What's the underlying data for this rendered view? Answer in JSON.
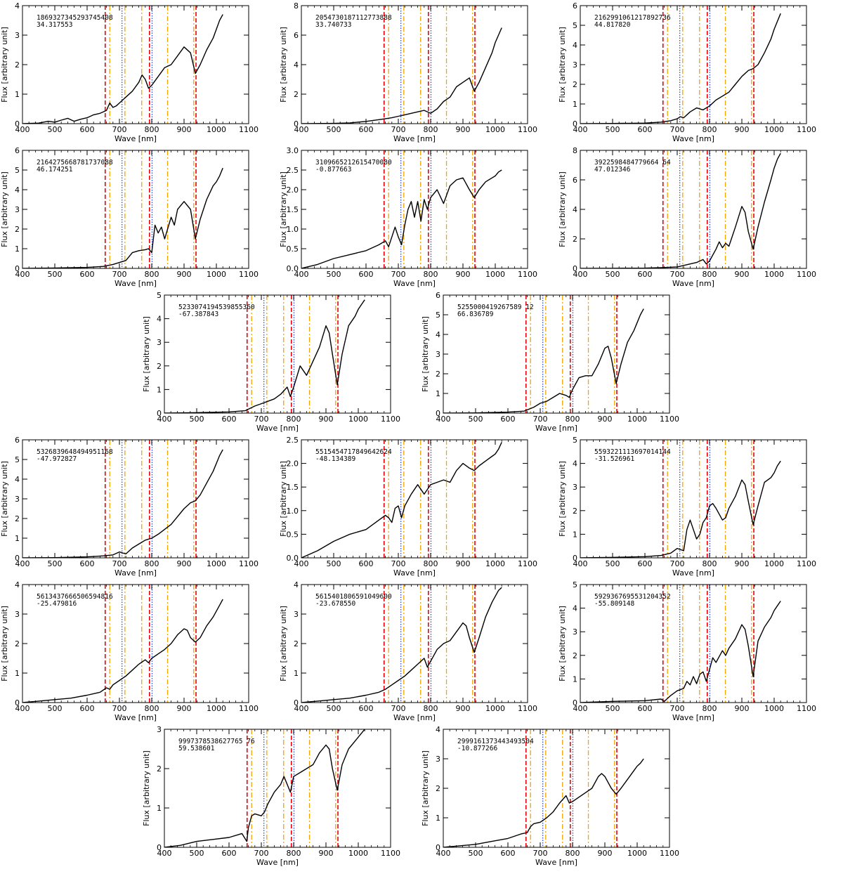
{
  "chart_data": [
    {
      "type": "line",
      "id": "186932734529374540 8",
      "annotation": [
        "1869327345293745408",
        "34.317553"
      ],
      "xlabel": "Wave [nm]",
      "ylabel": "Flux [arbitrary unit]",
      "xlim": [
        400,
        1100
      ],
      "ylim": [
        0,
        4
      ],
      "yticks": [
        0,
        1,
        2,
        3,
        4
      ],
      "x": [
        400,
        450,
        480,
        500,
        520,
        540,
        560,
        580,
        600,
        620,
        640,
        650,
        660,
        670,
        680,
        690,
        700,
        710,
        720,
        740,
        760,
        770,
        780,
        790,
        800,
        820,
        840,
        860,
        880,
        900,
        920,
        935,
        950,
        970,
        990,
        1000,
        1010,
        1020
      ],
      "y": [
        0,
        0.02,
        0.08,
        0.05,
        0.12,
        0.18,
        0.08,
        0.15,
        0.2,
        0.3,
        0.35,
        0.4,
        0.45,
        0.7,
        0.55,
        0.6,
        0.7,
        0.8,
        0.9,
        1.1,
        1.4,
        1.65,
        1.5,
        1.2,
        1.3,
        1.6,
        1.9,
        2.0,
        2.3,
        2.6,
        2.4,
        1.7,
        2.0,
        2.5,
        2.9,
        3.2,
        3.5,
        3.7
      ]
    },
    {
      "type": "line",
      "annotation": [
        "2054730187112773888",
        "33.740733"
      ],
      "xlabel": "Wave [nm]",
      "ylabel": "Flux [arbitrary unit]",
      "xlim": [
        400,
        1100
      ],
      "ylim": [
        0,
        8
      ],
      "yticks": [
        0,
        2,
        4,
        6,
        8
      ],
      "x": [
        400,
        500,
        550,
        600,
        650,
        680,
        700,
        720,
        740,
        760,
        780,
        800,
        820,
        840,
        860,
        880,
        900,
        920,
        935,
        950,
        970,
        990,
        1000,
        1010,
        1020
      ],
      "y": [
        0,
        0.02,
        0.05,
        0.15,
        0.3,
        0.4,
        0.5,
        0.6,
        0.7,
        0.8,
        0.9,
        0.7,
        1.0,
        1.5,
        1.8,
        2.5,
        2.8,
        3.1,
        2.2,
        2.8,
        3.8,
        4.8,
        5.5,
        6.0,
        6.5
      ]
    },
    {
      "type": "line",
      "annotation": [
        "2162991061217892736",
        "44.817820"
      ],
      "xlabel": "Wave [nm]",
      "ylabel": "Flux [arbitrary unit]",
      "xlim": [
        400,
        1100
      ],
      "ylim": [
        0,
        6
      ],
      "yticks": [
        0,
        1,
        2,
        3,
        4,
        5,
        6
      ],
      "x": [
        400,
        500,
        600,
        650,
        680,
        700,
        710,
        720,
        740,
        760,
        780,
        800,
        820,
        840,
        860,
        880,
        900,
        920,
        935,
        950,
        970,
        990,
        1000,
        1010,
        1020
      ],
      "y": [
        0,
        0.01,
        0.03,
        0.08,
        0.15,
        0.25,
        0.35,
        0.3,
        0.6,
        0.8,
        0.7,
        0.9,
        1.2,
        1.4,
        1.6,
        2.0,
        2.4,
        2.7,
        2.8,
        3.0,
        3.6,
        4.3,
        4.8,
        5.2,
        5.6
      ]
    },
    {
      "type": "line",
      "annotation": [
        "2164275668781737088",
        "46.174251"
      ],
      "xlabel": "Wave [nm]",
      "ylabel": "Flux [arbitrary unit]",
      "xlim": [
        400,
        1100
      ],
      "ylim": [
        0,
        6
      ],
      "yticks": [
        0,
        1,
        2,
        3,
        4,
        5,
        6
      ],
      "x": [
        400,
        500,
        600,
        650,
        680,
        700,
        720,
        740,
        760,
        780,
        790,
        800,
        810,
        820,
        830,
        840,
        860,
        870,
        880,
        900,
        920,
        935,
        950,
        970,
        990,
        1000,
        1010,
        1020
      ],
      "y": [
        0,
        0.02,
        0.05,
        0.1,
        0.2,
        0.3,
        0.4,
        0.8,
        0.9,
        0.95,
        1.0,
        0.8,
        2.2,
        1.8,
        2.1,
        1.5,
        2.6,
        2.2,
        3.0,
        3.4,
        3.0,
        1.5,
        2.5,
        3.5,
        4.2,
        4.4,
        4.7,
        5.1
      ]
    },
    {
      "type": "line",
      "annotation": [
        "3109665212615470080",
        "-0.877663"
      ],
      "xlabel": "Wave [nm]",
      "ylabel": "Flux [arbitrary unit]",
      "xlim": [
        400,
        1100
      ],
      "ylim": [
        0,
        3
      ],
      "yticks": [
        0,
        0.5,
        1.0,
        1.5,
        2.0,
        2.5,
        3.0
      ],
      "ytick_labels": [
        "0.0",
        "0.5",
        "1.0",
        "1.5",
        "2.0",
        "2.5",
        "3.0"
      ],
      "x": [
        400,
        450,
        500,
        550,
        600,
        640,
        660,
        670,
        680,
        690,
        700,
        710,
        720,
        730,
        740,
        750,
        760,
        770,
        780,
        790,
        800,
        810,
        820,
        840,
        860,
        880,
        900,
        920,
        935,
        950,
        970,
        990,
        1000,
        1010,
        1020
      ],
      "y": [
        0,
        0.1,
        0.25,
        0.35,
        0.45,
        0.6,
        0.7,
        0.55,
        0.8,
        1.05,
        0.8,
        0.6,
        1.1,
        1.5,
        1.7,
        1.3,
        1.7,
        1.2,
        1.75,
        1.5,
        1.8,
        1.9,
        2.0,
        1.65,
        2.1,
        2.25,
        2.3,
        2.0,
        1.8,
        2.0,
        2.2,
        2.3,
        2.35,
        2.45,
        2.5
      ]
    },
    {
      "type": "line",
      "annotation": [
        "3922598484779664 64",
        "47.012346"
      ],
      "xlabel": "Wave [nm]",
      "ylabel": "Flux [arbitrary unit]",
      "xlim": [
        400,
        1100
      ],
      "ylim": [
        0,
        8
      ],
      "yticks": [
        0,
        2,
        4,
        6,
        8
      ],
      "x": [
        400,
        500,
        600,
        650,
        700,
        720,
        740,
        760,
        770,
        780,
        790,
        800,
        820,
        830,
        840,
        850,
        860,
        880,
        900,
        910,
        920,
        935,
        950,
        970,
        990,
        1000,
        1010,
        1020
      ],
      "y": [
        0,
        0.01,
        0.02,
        0.05,
        0.1,
        0.2,
        0.3,
        0.4,
        0.5,
        0.6,
        0.3,
        0.5,
        1.3,
        1.8,
        1.4,
        1.7,
        1.5,
        2.8,
        4.2,
        3.8,
        2.5,
        1.3,
        2.8,
        4.5,
        6.0,
        6.8,
        7.4,
        7.8
      ]
    },
    {
      "type": "line",
      "annotation": [
        "5233074194539855360",
        "-67.387843"
      ],
      "xlabel": "Wave [nm]",
      "ylabel": "Flux [arbitrary unit]",
      "xlim": [
        400,
        1100
      ],
      "ylim": [
        0,
        5
      ],
      "yticks": [
        0,
        1,
        2,
        3,
        4,
        5
      ],
      "x": [
        400,
        500,
        600,
        650,
        680,
        700,
        720,
        740,
        760,
        780,
        790,
        800,
        820,
        840,
        860,
        880,
        900,
        910,
        920,
        935,
        950,
        970,
        990,
        1000,
        1010,
        1020
      ],
      "y": [
        0,
        0.02,
        0.05,
        0.1,
        0.3,
        0.4,
        0.5,
        0.6,
        0.8,
        1.1,
        0.7,
        1.1,
        2.0,
        1.6,
        2.2,
        2.8,
        3.7,
        3.4,
        2.5,
        1.2,
        2.5,
        3.7,
        4.1,
        4.4,
        4.6,
        4.8
      ]
    },
    {
      "type": "line",
      "annotation": [
        "5255000419267589 12",
        "66.836789"
      ],
      "xlabel": "Wave [nm]",
      "ylabel": "Flux [arbitrary unit]",
      "xlim": [
        400,
        1100
      ],
      "ylim": [
        0,
        6
      ],
      "yticks": [
        0,
        1,
        2,
        3,
        4,
        5,
        6
      ],
      "x": [
        400,
        500,
        600,
        650,
        680,
        700,
        720,
        740,
        760,
        780,
        790,
        800,
        810,
        820,
        840,
        860,
        880,
        900,
        910,
        920,
        935,
        950,
        970,
        990,
        1000,
        1010,
        1020
      ],
      "y": [
        0,
        0.01,
        0.05,
        0.1,
        0.3,
        0.5,
        0.6,
        0.8,
        1.0,
        0.9,
        0.8,
        1.2,
        1.5,
        1.8,
        1.9,
        1.9,
        2.5,
        3.3,
        3.4,
        2.8,
        1.5,
        2.5,
        3.6,
        4.2,
        4.6,
        5.0,
        5.3
      ]
    },
    {
      "type": "line",
      "annotation": [
        "5326839648494951168",
        "-47.972827"
      ],
      "xlabel": "Wave [nm]",
      "ylabel": "Flux [arbitrary unit]",
      "xlim": [
        400,
        1100
      ],
      "ylim": [
        0,
        6
      ],
      "yticks": [
        0,
        1,
        2,
        3,
        4,
        5,
        6
      ],
      "x": [
        400,
        500,
        600,
        650,
        680,
        700,
        710,
        720,
        740,
        760,
        780,
        800,
        820,
        840,
        860,
        880,
        900,
        920,
        935,
        950,
        970,
        990,
        1000,
        1010,
        1020
      ],
      "y": [
        0,
        0.01,
        0.05,
        0.1,
        0.15,
        0.3,
        0.25,
        0.2,
        0.5,
        0.7,
        0.9,
        1.0,
        1.2,
        1.45,
        1.7,
        2.1,
        2.5,
        2.8,
        2.9,
        3.2,
        3.8,
        4.4,
        4.8,
        5.2,
        5.5
      ]
    },
    {
      "type": "line",
      "annotation": [
        "5515454717849642624",
        "-48.134389"
      ],
      "xlabel": "Wave [nm]",
      "ylabel": "Flux [arbitrary unit]",
      "xlim": [
        400,
        1100
      ],
      "ylim": [
        0,
        2.5
      ],
      "yticks": [
        0,
        0.5,
        1.0,
        1.5,
        2.0,
        2.5
      ],
      "ytick_labels": [
        "0.0",
        "0.5",
        "1.0",
        "1.5",
        "2.0",
        "2.5"
      ],
      "x": [
        400,
        450,
        500,
        550,
        600,
        640,
        660,
        670,
        680,
        690,
        700,
        710,
        720,
        740,
        760,
        780,
        790,
        800,
        820,
        840,
        860,
        880,
        900,
        920,
        935,
        950,
        970,
        990,
        1000,
        1010,
        1020
      ],
      "y": [
        0,
        0.15,
        0.35,
        0.5,
        0.6,
        0.8,
        0.9,
        0.85,
        0.75,
        1.05,
        1.1,
        0.85,
        1.1,
        1.35,
        1.55,
        1.35,
        1.45,
        1.55,
        1.6,
        1.65,
        1.6,
        1.85,
        2.0,
        1.9,
        1.85,
        1.95,
        2.05,
        2.15,
        2.2,
        2.3,
        2.45
      ]
    },
    {
      "type": "line",
      "annotation": [
        "5593221113697014144",
        "-31.526961"
      ],
      "xlabel": "Wave [nm]",
      "ylabel": "Flux [arbitrary unit]",
      "xlim": [
        400,
        1100
      ],
      "ylim": [
        0,
        5
      ],
      "yticks": [
        0,
        1,
        2,
        3,
        4,
        5
      ],
      "x": [
        400,
        500,
        600,
        650,
        680,
        700,
        720,
        730,
        740,
        750,
        760,
        770,
        780,
        790,
        800,
        810,
        820,
        840,
        850,
        860,
        880,
        900,
        910,
        920,
        935,
        950,
        970,
        990,
        1000,
        1010,
        1020
      ],
      "y": [
        0,
        0.02,
        0.05,
        0.1,
        0.2,
        0.4,
        0.3,
        1.2,
        1.6,
        1.2,
        0.8,
        1.0,
        1.5,
        1.7,
        2.2,
        2.3,
        2.1,
        1.6,
        1.7,
        2.1,
        2.6,
        3.3,
        3.1,
        2.4,
        1.4,
        2.2,
        3.2,
        3.4,
        3.6,
        3.9,
        4.1
      ]
    },
    {
      "type": "line",
      "annotation": [
        "5613437666506594816",
        "-25.479816"
      ],
      "xlabel": "Wave [nm]",
      "ylabel": "Flux [arbitrary unit]",
      "xlim": [
        400,
        1100
      ],
      "ylim": [
        0,
        4
      ],
      "yticks": [
        0,
        1,
        2,
        3,
        4
      ],
      "x": [
        400,
        450,
        500,
        550,
        600,
        640,
        660,
        670,
        680,
        700,
        720,
        740,
        760,
        780,
        790,
        800,
        820,
        840,
        860,
        880,
        900,
        910,
        920,
        935,
        950,
        970,
        990,
        1000,
        1010,
        1020
      ],
      "y": [
        0,
        0.05,
        0.1,
        0.15,
        0.25,
        0.35,
        0.5,
        0.45,
        0.6,
        0.75,
        0.9,
        1.1,
        1.3,
        1.45,
        1.35,
        1.5,
        1.65,
        1.8,
        2.0,
        2.3,
        2.5,
        2.45,
        2.2,
        2.05,
        2.2,
        2.6,
        2.9,
        3.1,
        3.3,
        3.5
      ]
    },
    {
      "type": "line",
      "annotation": [
        "5615401806591049600",
        "-23.678550"
      ],
      "xlabel": "Wave [nm]",
      "ylabel": "Flux [arbitrary unit]",
      "xlim": [
        400,
        1100
      ],
      "ylim": [
        0,
        4
      ],
      "yticks": [
        0,
        1,
        2,
        3,
        4
      ],
      "x": [
        400,
        450,
        500,
        550,
        600,
        640,
        660,
        680,
        700,
        720,
        740,
        760,
        780,
        790,
        800,
        820,
        840,
        860,
        880,
        900,
        910,
        920,
        935,
        950,
        970,
        990,
        1000,
        1010,
        1020
      ],
      "y": [
        0,
        0.05,
        0.1,
        0.15,
        0.25,
        0.35,
        0.45,
        0.6,
        0.75,
        0.9,
        1.1,
        1.3,
        1.5,
        1.2,
        1.4,
        1.8,
        2.0,
        2.1,
        2.4,
        2.7,
        2.6,
        2.2,
        1.7,
        2.2,
        2.9,
        3.4,
        3.6,
        3.8,
        3.9
      ]
    },
    {
      "type": "line",
      "annotation": [
        "5929367695531204352",
        "-55.809148"
      ],
      "xlabel": "Wave [nm]",
      "ylabel": "Flux [arbitrary unit]",
      "xlim": [
        400,
        1100
      ],
      "ylim": [
        0,
        5
      ],
      "yticks": [
        0,
        1,
        2,
        3,
        4,
        5
      ],
      "x": [
        400,
        500,
        600,
        650,
        660,
        680,
        700,
        720,
        730,
        740,
        750,
        760,
        770,
        780,
        790,
        800,
        810,
        820,
        840,
        850,
        860,
        880,
        900,
        910,
        920,
        935,
        950,
        970,
        990,
        1000,
        1010,
        1020
      ],
      "y": [
        0,
        0.05,
        0.08,
        0.15,
        0.05,
        0.3,
        0.5,
        0.6,
        0.9,
        0.75,
        1.1,
        0.8,
        1.2,
        1.3,
        0.9,
        1.4,
        1.9,
        1.7,
        2.2,
        2.0,
        2.3,
        2.7,
        3.3,
        3.1,
        2.4,
        1.1,
        2.6,
        3.2,
        3.6,
        3.9,
        4.1,
        4.3
      ]
    },
    {
      "type": "line",
      "annotation": [
        "9997378538627765 76",
        "59.538601"
      ],
      "xlabel": "Wave [nm]",
      "ylabel": "Flux [arbitrary unit]",
      "xlim": [
        400,
        1100
      ],
      "ylim": [
        0,
        3
      ],
      "yticks": [
        0,
        1,
        2,
        3
      ],
      "x": [
        400,
        450,
        500,
        550,
        600,
        640,
        655,
        660,
        670,
        680,
        700,
        710,
        720,
        740,
        760,
        770,
        780,
        790,
        800,
        820,
        840,
        860,
        880,
        900,
        910,
        920,
        935,
        950,
        970,
        990,
        1000,
        1010,
        1020
      ],
      "y": [
        0,
        0.05,
        0.15,
        0.2,
        0.25,
        0.35,
        0.15,
        0.5,
        0.8,
        0.85,
        0.8,
        0.9,
        1.1,
        1.4,
        1.6,
        1.8,
        1.6,
        1.4,
        1.8,
        1.9,
        2.0,
        2.1,
        2.4,
        2.6,
        2.5,
        2.0,
        1.45,
        2.1,
        2.5,
        2.7,
        2.8,
        2.9,
        3.0
      ]
    },
    {
      "type": "line",
      "annotation": [
        "2999161373443493504",
        "-10.877266"
      ],
      "xlabel": "Wave [nm]",
      "ylabel": "Flux [arbitrary unit]",
      "xlim": [
        400,
        1100
      ],
      "ylim": [
        0,
        4
      ],
      "yticks": [
        0,
        1,
        2,
        3,
        4
      ],
      "x": [
        400,
        450,
        500,
        550,
        600,
        640,
        660,
        670,
        680,
        700,
        720,
        740,
        760,
        780,
        790,
        800,
        820,
        840,
        860,
        880,
        890,
        900,
        920,
        935,
        950,
        970,
        990,
        1000,
        1010,
        1020
      ],
      "y": [
        0,
        0.05,
        0.1,
        0.2,
        0.3,
        0.45,
        0.5,
        0.7,
        0.8,
        0.85,
        1.0,
        1.2,
        1.5,
        1.75,
        1.5,
        1.55,
        1.7,
        1.85,
        2.0,
        2.4,
        2.5,
        2.4,
        2.0,
        1.8,
        2.0,
        2.3,
        2.6,
        2.75,
        2.85,
        3.0
      ]
    }
  ],
  "markers": {
    "red_dashed": [
      656,
      793,
      937
    ],
    "orange_dashdot": [
      670,
      717,
      769,
      849,
      930
    ],
    "blue_dotted": [
      708,
      801
    ],
    "colors": {
      "red": "#e8000b",
      "orange": "#f5a300",
      "blue": "#1f3fd6",
      "line": "#000000"
    }
  },
  "xticks": [
    400,
    500,
    600,
    700,
    800,
    900,
    1000,
    1100
  ]
}
